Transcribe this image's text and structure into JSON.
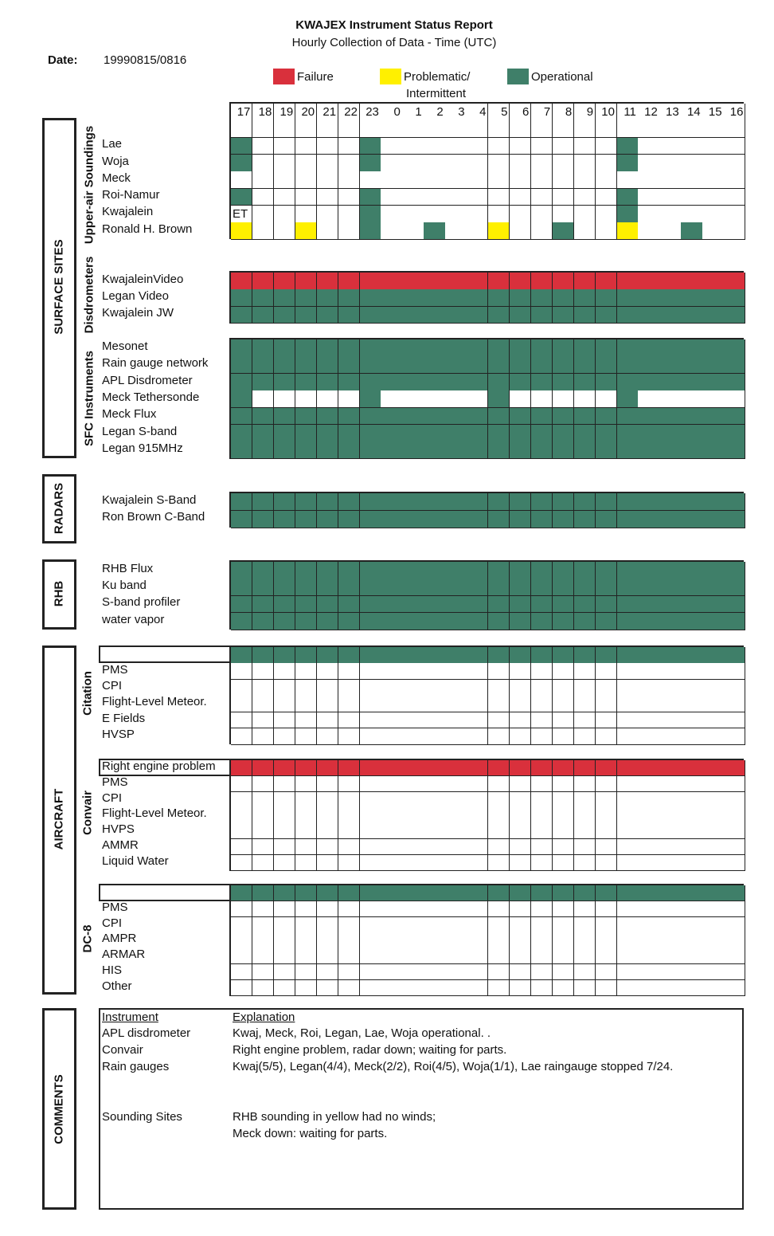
{
  "header": {
    "title": "KWAJEX Instrument Status Report",
    "subtitle": "Hourly Collection of Data - Time (UTC)",
    "date_label": "Date:",
    "date_value": "19990815/0816"
  },
  "legend": {
    "failure": {
      "label": "Failure",
      "color": "#d9303c"
    },
    "problematic": {
      "label_line1": "Problematic/",
      "label_line2": "Intermittent",
      "color": "#fff000"
    },
    "operational": {
      "label": "Operational",
      "color": "#3f7f69"
    }
  },
  "hours": [
    "17",
    "18",
    "19",
    "20",
    "21",
    "22",
    "23",
    "0",
    "1",
    "2",
    "3",
    "4",
    "5",
    "6",
    "7",
    "8",
    "9",
    "10",
    "11",
    "12",
    "13",
    "14",
    "15",
    "16"
  ],
  "section_titles": {
    "surface_sites": "SURFACE SITES",
    "radars": "RADARS",
    "rhb": "RHB",
    "aircraft": "AIRCRAFT",
    "comments": "COMMENTS"
  },
  "group_titles": {
    "upper_air": "Upper-air Soundings",
    "disdrometers": "Disdrometers",
    "sfc": "SFC Instruments",
    "citation": "Citation",
    "convair": "Convair",
    "dc8": "DC-8"
  },
  "grids": {
    "upper_air": {
      "rows": [
        {
          "label": "",
          "cells": "WWWWWWWWWWWWWWWWWWWWWWWW"
        },
        {
          "label": "Lae",
          "cells": "GWWWWWGWWWWWWWWWWWGWWWWW"
        },
        {
          "label": "Woja",
          "cells": "GWWWWWGWWWWWWWWWWWGWWWWW"
        },
        {
          "label": "Meck",
          "cells": "WWWWWWWWWWWWWWWWWWWWWWWW"
        },
        {
          "label": "Roi-Namur",
          "cells": "GWWWWWGWWWWWWWWWWWGWWWWW"
        },
        {
          "label": "Kwajalein",
          "cells": "WWWWWWGWWWWWWWWWWWGWWWWW",
          "note_hour": "17",
          "note": "ET"
        },
        {
          "label": "Ronald H. Brown",
          "cells": "YWWYWWGWWGWWYWWGWWYWWGWW"
        }
      ]
    },
    "disdrometers": {
      "rows": [
        {
          "label": "KwajaleinVideo",
          "cells": "RRRRRRRRRRRRRRRRRRRRRRRR"
        },
        {
          "label": "Legan Video",
          "cells": "GGGGGGGGGGGGGGGGGGGGGGGG"
        },
        {
          "label": "Kwajalein JW",
          "cells": "GGGGGGGGGGGGGGGGGGGGGGGG"
        }
      ]
    },
    "sfc": {
      "rows": [
        {
          "label": "Mesonet",
          "cells": "GGGGGGGGGGGGGGGGGGGGGGGG"
        },
        {
          "label": "Rain gauge network",
          "cells": "GGGGGGGGGGGGGGGGGGGGGGGG"
        },
        {
          "label": "APL Disdrometer",
          "cells": "GGGGGGGGGGGGGGGGGGGGGGGG"
        },
        {
          "label": "Meck Tethersonde",
          "cells": "GWWWWWGWWWWWGWWWWWGWWWWW"
        },
        {
          "label": "Meck Flux",
          "cells": "GGGGGGGGGGGGGGGGGGGGGGGG"
        },
        {
          "label": "Legan S-band",
          "cells": "GGGGGGGGGGGGGGGGGGGGGGGG"
        },
        {
          "label": "Legan 915MHz",
          "cells": "GGGGGGGGGGGGGGGGGGGGGGGG"
        }
      ]
    },
    "radars": {
      "rows": [
        {
          "label": "Kwajalein S-Band",
          "cells": "GGGGGGGGGGGGGGGGGGGGGGGG"
        },
        {
          "label": "Ron Brown C-Band",
          "cells": "GGGGGGGGGGGGGGGGGGGGGGGG"
        }
      ]
    },
    "rhb": {
      "rows": [
        {
          "label": "RHB Flux",
          "cells": "GGGGGGGGGGGGGGGGGGGGGGGG"
        },
        {
          "label": "Ku band",
          "cells": "GGGGGGGGGGGGGGGGGGGGGGGG"
        },
        {
          "label": "S-band profiler",
          "cells": "GGGGGGGGGGGGGGGGGGGGGGGG"
        },
        {
          "label": "water vapor",
          "cells": "GGGGGGGGGGGGGGGGGGGGGGGG"
        }
      ]
    },
    "citation": {
      "header_note": "",
      "rows": [
        {
          "label": "",
          "cells": "GGGGGGGGGGGGGGGGGGGGGGGG"
        },
        {
          "label": "PMS",
          "cells": "WWWWWWWWWWWWWWWWWWWWWWWW"
        },
        {
          "label": "CPI",
          "cells": "WWWWWWWWWWWWWWWWWWWWWWWW"
        },
        {
          "label": "Flight-Level Meteor.",
          "cells": "WWWWWWWWWWWWWWWWWWWWWWWW"
        },
        {
          "label": "E Fields",
          "cells": "WWWWWWWWWWWWWWWWWWWWWWWW"
        },
        {
          "label": "HVSP",
          "cells": "WWWWWWWWWWWWWWWWWWWWWWWW"
        }
      ]
    },
    "convair": {
      "header_note": "Right engine problem",
      "rows": [
        {
          "label": "",
          "cells": "RRRRRRRRRRRRRRRRRRRRRRRR"
        },
        {
          "label": "PMS",
          "cells": "WWWWWWWWWWWWWWWWWWWWWWWW"
        },
        {
          "label": "CPI",
          "cells": "WWWWWWWWWWWWWWWWWWWWWWWW"
        },
        {
          "label": "Flight-Level Meteor.",
          "cells": "WWWWWWWWWWWWWWWWWWWWWWWW"
        },
        {
          "label": "HVPS",
          "cells": "WWWWWWWWWWWWWWWWWWWWWWWW"
        },
        {
          "label": "AMMR",
          "cells": "WWWWWWWWWWWWWWWWWWWWWWWW"
        },
        {
          "label": "Liquid Water",
          "cells": "WWWWWWWWWWWWWWWWWWWWWWWW"
        }
      ]
    },
    "dc8": {
      "header_note": "",
      "rows": [
        {
          "label": "",
          "cells": "GGGGGGGGGGGGGGGGGGGGGGGG"
        },
        {
          "label": "PMS",
          "cells": "WWWWWWWWWWWWWWWWWWWWWWWW"
        },
        {
          "label": "CPI",
          "cells": "WWWWWWWWWWWWWWWWWWWWWWWW"
        },
        {
          "label": "AMPR",
          "cells": "WWWWWWWWWWWWWWWWWWWWWWWW"
        },
        {
          "label": "ARMAR",
          "cells": "WWWWWWWWWWWWWWWWWWWWWWWW"
        },
        {
          "label": "HIS",
          "cells": "WWWWWWWWWWWWWWWWWWWWWWWW"
        },
        {
          "label": "Other",
          "cells": "WWWWWWWWWWWWWWWWWWWWWWWW"
        }
      ]
    }
  },
  "comments": {
    "col_instrument": "Instrument",
    "col_explanation": "Explanation",
    "rows": [
      {
        "instrument": "APL disdrometer",
        "explanation": "Kwaj, Meck, Roi, Legan, Lae, Woja operational. ."
      },
      {
        "instrument": "Convair",
        "explanation": "Right engine problem, radar down; waiting for parts."
      },
      {
        "instrument": "Rain gauges",
        "explanation": "Kwaj(5/5), Legan(4/4), Meck(2/2), Roi(4/5), Woja(1/1), Lae raingauge stopped 7/24."
      },
      {
        "instrument": "Sounding Sites",
        "explanation": "RHB sounding in yellow had no winds;"
      },
      {
        "instrument": "",
        "explanation": "Meck down: waiting for parts."
      }
    ]
  }
}
